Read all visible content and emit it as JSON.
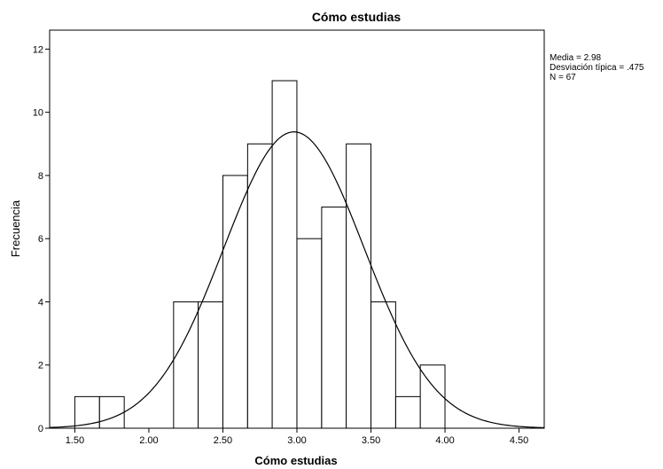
{
  "chart_data": {
    "type": "bar",
    "title": "Cómo estudias",
    "xlabel": "Cómo estudias",
    "ylabel": "Frecuencia",
    "xlim": [
      1.33,
      4.67
    ],
    "ylim": [
      0,
      12.6
    ],
    "x_ticks": [
      "1.50",
      "2.00",
      "2.50",
      "3.00",
      "3.50",
      "4.00",
      "4.50"
    ],
    "y_ticks": [
      "0",
      "2",
      "4",
      "6",
      "8",
      "10",
      "12"
    ],
    "bin_width": 0.1667,
    "bins": [
      {
        "start": 1.5,
        "value": 1
      },
      {
        "start": 1.667,
        "value": 1
      },
      {
        "start": 2.167,
        "value": 4
      },
      {
        "start": 2.333,
        "value": 4
      },
      {
        "start": 2.5,
        "value": 8
      },
      {
        "start": 2.667,
        "value": 9
      },
      {
        "start": 2.833,
        "value": 11
      },
      {
        "start": 3.0,
        "value": 6
      },
      {
        "start": 3.167,
        "value": 7
      },
      {
        "start": 3.333,
        "value": 9
      },
      {
        "start": 3.5,
        "value": 4
      },
      {
        "start": 3.667,
        "value": 1
      },
      {
        "start": 3.833,
        "value": 2
      }
    ],
    "normal_curve": {
      "mean": 2.98,
      "sd": 0.475,
      "n": 67
    },
    "stats": [
      "Media = 2.98",
      "Desviación típica = .475",
      "N = 67"
    ],
    "grid": false,
    "colors": {
      "bar_fill": "#ffffff",
      "bar_stroke": "#000000",
      "curve": "#000000"
    }
  }
}
